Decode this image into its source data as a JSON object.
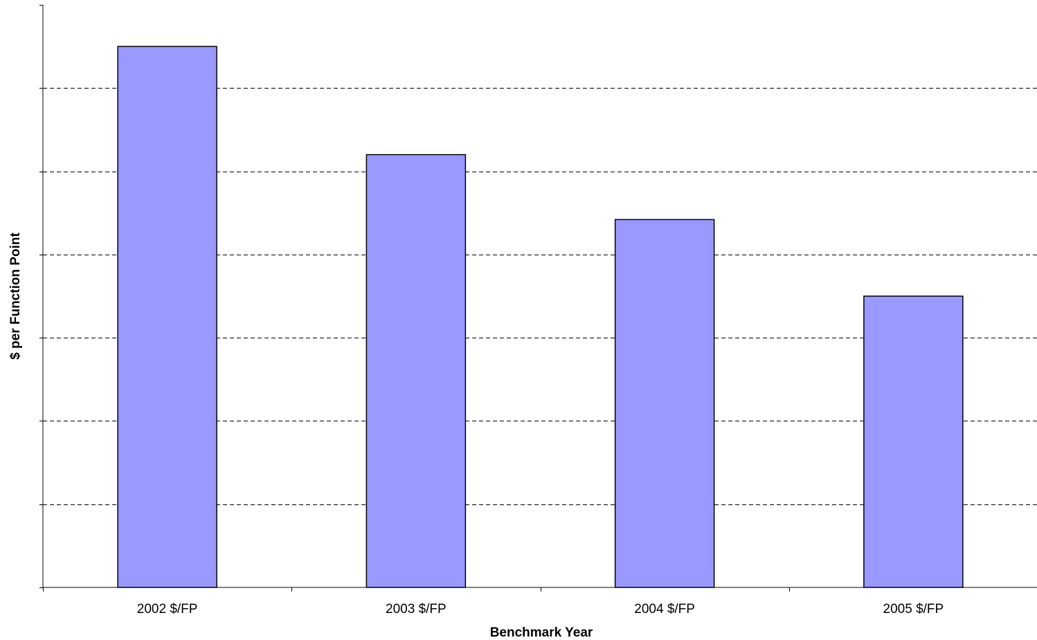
{
  "chart_data": {
    "type": "bar",
    "categories": [
      "2002 $/FP",
      "2003 $/FP",
      "2004 $/FP",
      "2005 $/FP"
    ],
    "values": [
      6.5,
      5.2,
      4.42,
      3.5
    ],
    "title": "",
    "xlabel": "Benchmark Year",
    "ylabel": "$ per Function Point",
    "ylim": [
      0,
      7
    ],
    "y_tick_step": 1,
    "y_tick_labels_visible": false,
    "grid": "horizontal-dashed",
    "legend": "none",
    "colors": {
      "bar_fill": "#9999ff",
      "bar_stroke": "#000000",
      "grid": "#000000",
      "axis": "#000000"
    }
  }
}
